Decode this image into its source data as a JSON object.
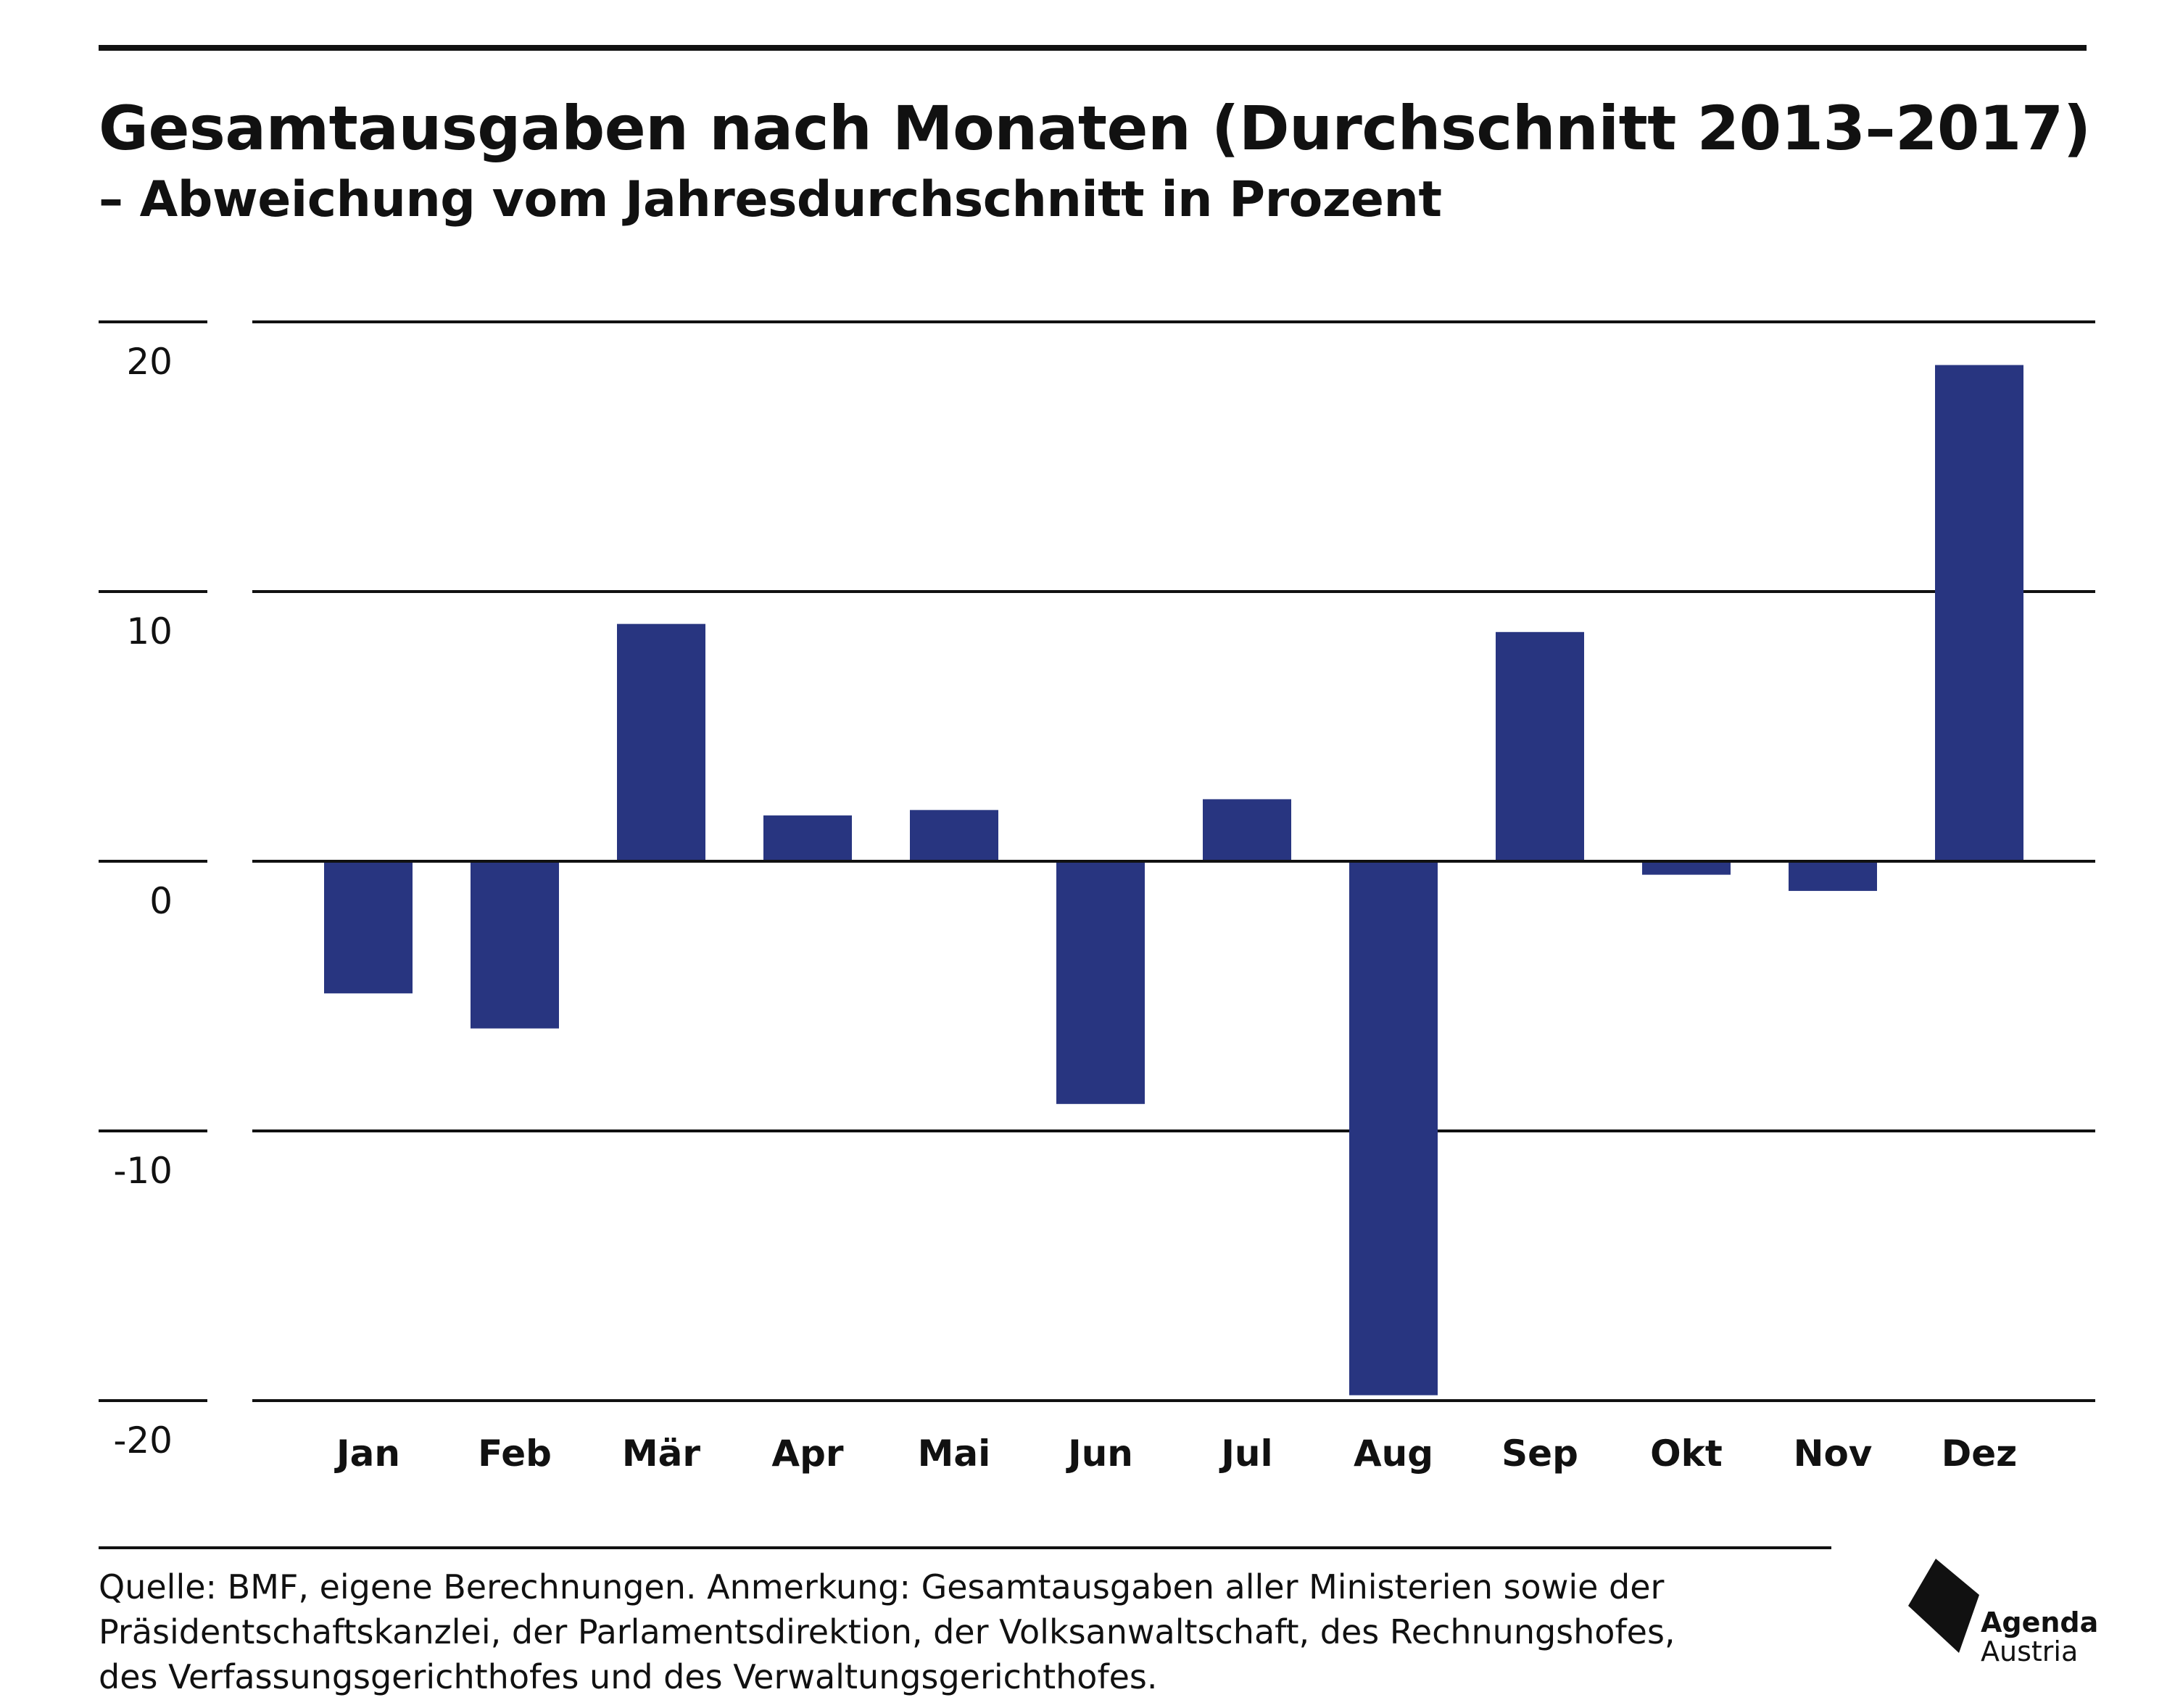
{
  "header": {
    "title": "Gesamtausgaben nach Monaten (Durchschnitt 2013–2017)",
    "subtitle": "– Abweichung vom Jahresdurchschnitt in Prozent"
  },
  "chart_data": {
    "type": "bar",
    "title": "Gesamtausgaben nach Monaten (Durchschnitt 2013–2017)",
    "subtitle": "– Abweichung vom Jahresdurchschnitt in Prozent",
    "xlabel": "",
    "ylabel": "",
    "categories": [
      "Jan",
      "Feb",
      "Mär",
      "Apr",
      "Mai",
      "Jun",
      "Jul",
      "Aug",
      "Sep",
      "Okt",
      "Nov",
      "Dez"
    ],
    "values": [
      -4.9,
      -6.2,
      8.8,
      1.7,
      1.9,
      -9.0,
      2.3,
      -19.8,
      8.5,
      -0.5,
      -1.1,
      18.4
    ],
    "ylim": [
      -20,
      20
    ],
    "yticks": [
      "-20",
      "-10",
      "0",
      "10",
      "20"
    ],
    "grid": true,
    "legend": "none",
    "bar_color": "#283580"
  },
  "footer": {
    "source_lines": [
      "Quelle: BMF, eigene Berechnungen. Anmerkung: Gesamtausgaben aller Ministerien sowie der",
      "Präsidentschaftskanzlei, der Parlamentsdirektion, der Volksanwaltschaft, des Rechnungshofes,",
      "des Verfassungsgerichthofes und des Verwaltungsgerichthofes."
    ]
  },
  "logo": {
    "line1": "Agenda",
    "line2": "Austria"
  }
}
